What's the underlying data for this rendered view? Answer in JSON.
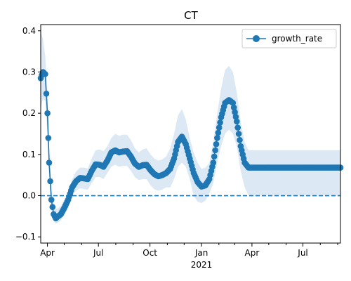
{
  "chart_data": {
    "type": "line",
    "title": "CT",
    "xlabel": "",
    "ylabel": "",
    "x_range": [
      "2020-03-20",
      "2021-09-06"
    ],
    "ylim": [
      -0.115,
      0.415
    ],
    "y_ticks": [
      -0.1,
      0.0,
      0.1,
      0.2,
      0.3,
      0.4
    ],
    "y_tick_labels": [
      "−0.1",
      "0.0",
      "0.1",
      "0.2",
      "0.3",
      "0.4"
    ],
    "x_major_ticks": [
      {
        "date": "2020-04-01",
        "label": "Apr"
      },
      {
        "date": "2020-07-01",
        "label": "Jul"
      },
      {
        "date": "2020-10-01",
        "label": "Oct"
      },
      {
        "date": "2021-01-01",
        "label": "Jan"
      },
      {
        "date": "2021-04-01",
        "label": "Apr"
      },
      {
        "date": "2021-07-01",
        "label": "Jul"
      }
    ],
    "x_year_label": {
      "date": "2021-01-01",
      "label": "2021"
    },
    "x_minor_ticks": [
      "2020-05-01",
      "2020-06-01",
      "2020-08-01",
      "2020-09-01",
      "2020-11-01",
      "2020-12-01",
      "2021-02-01",
      "2021-03-01",
      "2021-05-01",
      "2021-06-01",
      "2021-08-01",
      "2021-09-01"
    ],
    "grid": false,
    "legend": {
      "position": "top-right",
      "entries": [
        "growth_rate"
      ]
    },
    "reference_line": {
      "y": 0.0,
      "style": "dashed"
    },
    "colors": {
      "series": "#1f77b4",
      "band": "#dce9f5"
    },
    "series": [
      {
        "name": "growth_rate",
        "x": [
          "2020-03-20",
          "2020-03-24",
          "2020-03-28",
          "2020-04-01",
          "2020-04-04",
          "2020-04-08",
          "2020-04-12",
          "2020-04-16",
          "2020-04-20",
          "2020-04-25",
          "2020-05-01",
          "2020-05-08",
          "2020-05-15",
          "2020-05-22",
          "2020-05-29",
          "2020-06-05",
          "2020-06-12",
          "2020-06-19",
          "2020-06-26",
          "2020-07-03",
          "2020-07-10",
          "2020-07-17",
          "2020-07-24",
          "2020-07-31",
          "2020-08-07",
          "2020-08-14",
          "2020-08-21",
          "2020-08-28",
          "2020-09-04",
          "2020-09-11",
          "2020-09-18",
          "2020-09-25",
          "2020-10-02",
          "2020-10-09",
          "2020-10-16",
          "2020-10-23",
          "2020-10-30",
          "2020-11-06",
          "2020-11-13",
          "2020-11-20",
          "2020-11-27",
          "2020-12-04",
          "2020-12-11",
          "2020-12-18",
          "2020-12-25",
          "2021-01-01",
          "2021-01-08",
          "2021-01-15",
          "2021-01-22",
          "2021-01-29",
          "2021-02-05",
          "2021-02-12",
          "2021-02-19",
          "2021-02-26",
          "2021-03-05",
          "2021-03-12",
          "2021-03-19",
          "2021-03-26",
          "2021-04-02",
          "2021-04-09",
          "2021-04-16",
          "2021-04-23",
          "2021-04-30",
          "2021-05-07",
          "2021-05-14",
          "2021-05-21",
          "2021-05-28",
          "2021-06-04",
          "2021-06-11",
          "2021-06-18",
          "2021-06-25",
          "2021-07-02",
          "2021-07-09",
          "2021-07-16",
          "2021-07-23",
          "2021-07-30",
          "2021-08-06",
          "2021-08-13",
          "2021-08-20",
          "2021-08-27",
          "2021-09-03",
          "2021-09-06"
        ],
        "values": [
          0.285,
          0.3,
          0.295,
          0.2,
          0.08,
          -0.01,
          -0.045,
          -0.055,
          -0.05,
          -0.045,
          -0.03,
          -0.01,
          0.02,
          0.035,
          0.043,
          0.042,
          0.04,
          0.06,
          0.076,
          0.075,
          0.07,
          0.085,
          0.105,
          0.11,
          0.105,
          0.107,
          0.108,
          0.095,
          0.078,
          0.07,
          0.074,
          0.075,
          0.062,
          0.052,
          0.047,
          0.05,
          0.055,
          0.065,
          0.09,
          0.13,
          0.143,
          0.125,
          0.09,
          0.055,
          0.033,
          0.022,
          0.025,
          0.04,
          0.08,
          0.14,
          0.19,
          0.225,
          0.232,
          0.225,
          0.18,
          0.12,
          0.08,
          0.068,
          0.068,
          0.068,
          0.068,
          0.068,
          0.068,
          0.068,
          0.068,
          0.068,
          0.068,
          0.068,
          0.068,
          0.068,
          0.068,
          0.068,
          0.068,
          0.068,
          0.068,
          0.068,
          0.068,
          0.068,
          0.068,
          0.068,
          0.068,
          0.068
        ],
        "lower": [
          0.21,
          0.235,
          0.23,
          0.15,
          0.04,
          -0.035,
          -0.06,
          -0.068,
          -0.065,
          -0.06,
          -0.048,
          -0.03,
          0.0,
          0.012,
          0.018,
          0.016,
          0.014,
          0.03,
          0.045,
          0.045,
          0.04,
          0.055,
          0.07,
          0.075,
          0.07,
          0.072,
          0.072,
          0.06,
          0.045,
          0.038,
          0.04,
          0.04,
          0.025,
          0.015,
          0.012,
          0.015,
          0.02,
          0.02,
          0.04,
          0.07,
          0.08,
          0.07,
          0.04,
          0.0,
          -0.015,
          -0.018,
          -0.012,
          0.005,
          0.03,
          0.08,
          0.12,
          0.15,
          0.16,
          0.15,
          0.12,
          0.06,
          0.02,
          0.0,
          0.0,
          0.0,
          0.0,
          0.0,
          0.0,
          0.0,
          0.0,
          0.0,
          0.0,
          0.0,
          0.0,
          0.0,
          0.0,
          0.0,
          0.0,
          0.0,
          0.0,
          0.0,
          0.0,
          0.0,
          0.0,
          0.0,
          0.0,
          0.0
        ],
        "upper": [
          0.4,
          0.38,
          0.34,
          0.25,
          0.12,
          0.02,
          -0.02,
          -0.035,
          -0.03,
          -0.025,
          -0.01,
          0.01,
          0.04,
          0.058,
          0.068,
          0.068,
          0.066,
          0.09,
          0.11,
          0.112,
          0.108,
          0.12,
          0.14,
          0.15,
          0.145,
          0.148,
          0.148,
          0.135,
          0.115,
          0.105,
          0.112,
          0.115,
          0.1,
          0.09,
          0.085,
          0.088,
          0.095,
          0.115,
          0.15,
          0.195,
          0.21,
          0.185,
          0.14,
          0.105,
          0.08,
          0.065,
          0.068,
          0.08,
          0.13,
          0.2,
          0.26,
          0.305,
          0.315,
          0.3,
          0.25,
          0.18,
          0.13,
          0.11,
          0.11,
          0.11,
          0.11,
          0.11,
          0.11,
          0.11,
          0.11,
          0.11,
          0.11,
          0.11,
          0.11,
          0.11,
          0.11,
          0.11,
          0.11,
          0.11,
          0.11,
          0.11,
          0.11,
          0.11,
          0.11,
          0.11,
          0.11,
          0.11
        ]
      }
    ]
  }
}
